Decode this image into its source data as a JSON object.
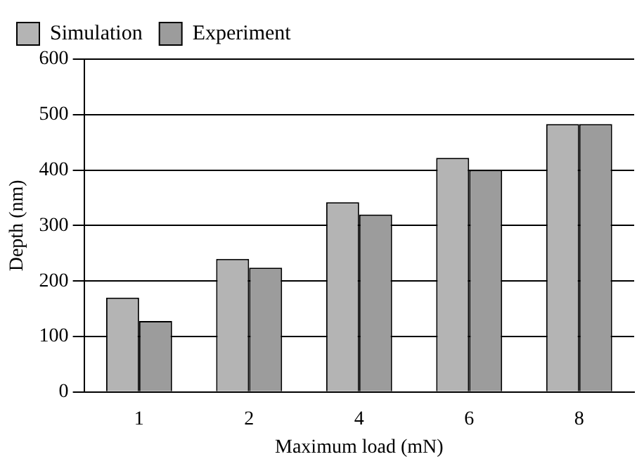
{
  "chart_data": {
    "type": "bar",
    "xlabel": "Maximum load (mN)",
    "ylabel": "Depth (nm)",
    "categories": [
      "1",
      "2",
      "4",
      "6",
      "8"
    ],
    "series": [
      {
        "name": "Simulation",
        "color": "#b4b4b4",
        "values": [
          170,
          240,
          342,
          422,
          483
        ]
      },
      {
        "name": "Experiment",
        "color": "#9c9c9c",
        "values": [
          128,
          224,
          320,
          400,
          483
        ]
      }
    ],
    "ylim": [
      0,
      600
    ],
    "yticks": [
      0,
      100,
      200,
      300,
      400,
      500,
      600
    ],
    "grid": "y",
    "legend": "top left"
  }
}
